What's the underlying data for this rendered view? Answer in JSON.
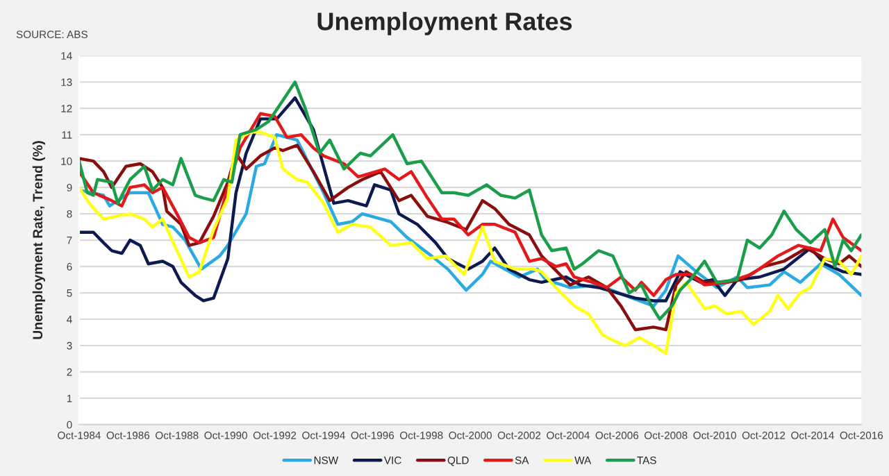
{
  "chart_data": {
    "type": "line",
    "title": "Unemployment Rates",
    "ylabel": "Unemployment Rate, Trend (%)",
    "annotations": [
      "SOURCE: ABS"
    ],
    "xlim": [
      "1984-10",
      "2016-10"
    ],
    "ylim": [
      0,
      14
    ],
    "yticks": [
      0,
      1,
      2,
      3,
      4,
      5,
      6,
      7,
      8,
      9,
      10,
      11,
      12,
      13,
      14
    ],
    "xticks": [
      {
        "value": "1984-10",
        "label": "Oct-1984"
      },
      {
        "value": "1986-10",
        "label": "Oct-1986"
      },
      {
        "value": "1988-10",
        "label": "Oct-1988"
      },
      {
        "value": "1990-10",
        "label": "Oct-1990"
      },
      {
        "value": "1992-10",
        "label": "Oct-1992"
      },
      {
        "value": "1994-10",
        "label": "Oct-1994"
      },
      {
        "value": "1996-10",
        "label": "Oct-1996"
      },
      {
        "value": "1998-10",
        "label": "Oct-1998"
      },
      {
        "value": "2000-10",
        "label": "Oct-2000"
      },
      {
        "value": "2002-10",
        "label": "Oct-2002"
      },
      {
        "value": "2004-10",
        "label": "Oct-2004"
      },
      {
        "value": "2006-10",
        "label": "Oct-2006"
      },
      {
        "value": "2008-10",
        "label": "Oct-2008"
      },
      {
        "value": "2010-10",
        "label": "Oct-2010"
      },
      {
        "value": "2012-10",
        "label": "Oct-2012"
      },
      {
        "value": "2014-10",
        "label": "Oct-2014"
      },
      {
        "value": "2016-10",
        "label": "Oct-2016"
      }
    ],
    "grid": "y",
    "legend": "bottom",
    "marker": "none",
    "line_style": "solid",
    "series": [
      {
        "name": "NSW",
        "color": "#29abe2",
        "x": [
          "1984-10",
          "1985-10",
          "1986-01",
          "1986-11",
          "1987-08",
          "1988-03",
          "1988-08",
          "1989-02",
          "1989-10",
          "1990-07",
          "1990-11",
          "1991-08",
          "1992-01",
          "1992-05",
          "1992-11",
          "1993-09",
          "1994-10",
          "1995-05",
          "1995-12",
          "1996-05",
          "1997-07",
          "1998-03",
          "1999-03",
          "1999-11",
          "2000-08",
          "2001-04",
          "2001-08",
          "2002-10",
          "2003-07",
          "2003-11",
          "2004-11",
          "2006-01",
          "2007-02",
          "2008-04",
          "2008-10",
          "2009-04",
          "2010-01",
          "2010-11",
          "2011-09",
          "2012-02",
          "2013-01",
          "2013-08",
          "2014-04",
          "2015-02",
          "2015-11",
          "2016-10"
        ],
        "values": [
          8.9,
          8.7,
          8.3,
          8.8,
          8.8,
          7.6,
          7.5,
          7.0,
          5.9,
          6.4,
          6.8,
          8.0,
          9.8,
          9.9,
          11.0,
          10.8,
          8.8,
          7.6,
          7.7,
          8.0,
          7.7,
          7.1,
          6.4,
          5.9,
          5.1,
          5.7,
          6.2,
          5.6,
          5.9,
          5.5,
          5.2,
          5.3,
          4.9,
          4.5,
          5.1,
          6.4,
          5.8,
          5.2,
          5.6,
          5.2,
          5.3,
          5.8,
          5.4,
          6.1,
          5.7,
          4.9
        ]
      },
      {
        "name": "VIC",
        "color": "#0d1a4f",
        "x": [
          "1984-10",
          "1985-05",
          "1985-10",
          "1986-02",
          "1986-07",
          "1986-11",
          "1987-04",
          "1987-08",
          "1988-03",
          "1988-08",
          "1988-12",
          "1989-07",
          "1989-11",
          "1990-04",
          "1990-11",
          "1991-03",
          "1991-08",
          "1992-03",
          "1992-11",
          "1993-08",
          "1994-05",
          "1994-10",
          "1995-03",
          "1995-10",
          "1996-07",
          "1996-11",
          "1997-07",
          "1997-11",
          "1998-08",
          "1999-05",
          "1999-11",
          "2000-09",
          "2001-04",
          "2001-10",
          "2002-05",
          "2003-03",
          "2003-09",
          "2004-09",
          "2005-04",
          "2006-01",
          "2007-07",
          "2008-04",
          "2008-10",
          "2009-05",
          "2010-03",
          "2010-09",
          "2011-03",
          "2011-09",
          "2012-08",
          "2013-08",
          "2014-09",
          "2015-04",
          "2016-01",
          "2016-10"
        ],
        "values": [
          7.3,
          7.3,
          6.9,
          6.6,
          6.5,
          7.0,
          6.8,
          6.1,
          6.2,
          6.0,
          5.4,
          4.9,
          4.7,
          4.8,
          6.3,
          8.8,
          10.3,
          11.6,
          11.6,
          12.4,
          11.2,
          9.8,
          8.4,
          8.5,
          8.3,
          9.1,
          8.9,
          8.0,
          7.6,
          6.9,
          6.3,
          5.9,
          6.2,
          6.7,
          5.9,
          5.5,
          5.4,
          5.6,
          5.3,
          5.2,
          4.8,
          4.7,
          4.7,
          5.8,
          5.4,
          5.5,
          4.9,
          5.5,
          5.6,
          5.9,
          6.7,
          6.1,
          5.8,
          5.7
        ]
      },
      {
        "name": "QLD",
        "color": "#8b0e0e",
        "x": [
          "1984-10",
          "1985-05",
          "1985-10",
          "1986-02",
          "1986-09",
          "1987-04",
          "1987-10",
          "1988-03",
          "1988-05",
          "1988-12",
          "1989-04",
          "1989-09",
          "1990-04",
          "1990-11",
          "1991-03",
          "1991-08",
          "1992-03",
          "1992-10",
          "1993-02",
          "1993-09",
          "1994-05",
          "1995-01",
          "1995-10",
          "1996-05",
          "1997-02",
          "1997-11",
          "1998-05",
          "1999-01",
          "1999-10",
          "2000-08",
          "2001-04",
          "2001-10",
          "2002-05",
          "2003-03",
          "2003-09",
          "2004-11",
          "2005-08",
          "2006-05",
          "2006-12",
          "2007-07",
          "2008-04",
          "2008-10",
          "2009-03",
          "2009-08",
          "2010-05",
          "2011-04",
          "2011-11",
          "2012-10",
          "2013-08",
          "2014-07",
          "2015-04",
          "2015-11",
          "2016-04",
          "2016-10"
        ],
        "values": [
          10.1,
          10.0,
          9.6,
          9.0,
          9.8,
          9.9,
          9.6,
          9.0,
          8.1,
          7.6,
          6.8,
          6.9,
          7.9,
          9.2,
          10.3,
          9.7,
          10.2,
          10.5,
          10.4,
          10.6,
          9.6,
          8.5,
          9.0,
          9.3,
          9.6,
          8.5,
          8.7,
          7.9,
          7.7,
          7.4,
          8.5,
          8.2,
          7.6,
          7.2,
          6.4,
          5.3,
          5.6,
          5.2,
          4.5,
          3.6,
          3.7,
          3.6,
          5.3,
          5.8,
          5.4,
          5.4,
          5.5,
          6.0,
          6.2,
          6.7,
          6.3,
          6.1,
          6.4,
          6.0
        ]
      },
      {
        "name": "SA",
        "color": "#e31a1c",
        "x": [
          "1984-10",
          "1985-05",
          "1986-02",
          "1986-07",
          "1986-11",
          "1987-06",
          "1987-10",
          "1988-03",
          "1988-10",
          "1989-04",
          "1989-09",
          "1990-04",
          "1990-11",
          "1991-05",
          "1992-03",
          "1992-10",
          "1993-04",
          "1993-11",
          "1994-05",
          "1994-10",
          "1995-08",
          "1996-03",
          "1997-04",
          "1997-11",
          "1998-05",
          "1999-01",
          "1999-08",
          "2000-02",
          "2000-09",
          "2001-04",
          "2001-10",
          "2002-08",
          "2003-03",
          "2003-09",
          "2004-04",
          "2004-09",
          "2005-01",
          "2005-10",
          "2006-05",
          "2006-12",
          "2007-07",
          "2007-10",
          "2008-04",
          "2008-10",
          "2009-03",
          "2009-10",
          "2010-05",
          "2011-04",
          "2012-04",
          "2013-05",
          "2014-03",
          "2015-02",
          "2015-08",
          "2016-01",
          "2016-10"
        ],
        "values": [
          9.6,
          8.8,
          8.5,
          8.3,
          9.0,
          9.1,
          8.8,
          9.0,
          8.0,
          7.1,
          6.9,
          7.1,
          9.0,
          10.5,
          11.8,
          11.7,
          10.9,
          11.0,
          10.5,
          10.2,
          9.9,
          9.4,
          9.7,
          9.3,
          9.6,
          8.6,
          7.8,
          7.8,
          7.2,
          7.6,
          7.6,
          7.3,
          6.2,
          6.3,
          6.0,
          6.1,
          5.6,
          5.4,
          5.2,
          5.6,
          5.1,
          5.4,
          4.9,
          5.5,
          5.7,
          5.7,
          5.3,
          5.4,
          5.7,
          6.4,
          6.8,
          6.6,
          7.8,
          7.1,
          6.6
        ]
      },
      {
        "name": "WA",
        "color": "#ffff1a",
        "x": [
          "1984-10",
          "1985-03",
          "1985-10",
          "1986-04",
          "1986-11",
          "1987-06",
          "1987-10",
          "1988-03",
          "1988-10",
          "1989-04",
          "1989-09",
          "1990-04",
          "1990-11",
          "1991-03",
          "1991-10",
          "1992-03",
          "1992-10",
          "1993-02",
          "1993-09",
          "1994-02",
          "1994-10",
          "1995-05",
          "1995-12",
          "1996-09",
          "1997-07",
          "1998-05",
          "1999-01",
          "1999-10",
          "2000-07",
          "2001-04",
          "2001-10",
          "2002-08",
          "2003-05",
          "2003-09",
          "2004-04",
          "2005-01",
          "2005-08",
          "2006-03",
          "2006-08",
          "2007-02",
          "2007-09",
          "2008-04",
          "2008-10",
          "2009-03",
          "2009-08",
          "2010-05",
          "2010-10",
          "2011-04",
          "2011-11",
          "2012-05",
          "2013-01",
          "2013-05",
          "2013-10",
          "2014-04",
          "2014-09",
          "2015-04",
          "2015-11",
          "2016-05",
          "2016-10"
        ],
        "values": [
          9.0,
          8.4,
          7.8,
          7.9,
          8.0,
          7.8,
          7.5,
          7.8,
          6.6,
          5.6,
          5.8,
          7.4,
          8.6,
          10.8,
          11.1,
          11.1,
          10.9,
          9.7,
          9.3,
          9.2,
          8.4,
          7.3,
          7.6,
          7.5,
          6.8,
          6.9,
          6.3,
          6.4,
          5.7,
          7.5,
          6.2,
          5.9,
          5.9,
          5.8,
          5.2,
          4.5,
          4.2,
          3.4,
          3.2,
          3.0,
          3.3,
          3.0,
          2.7,
          5.0,
          5.4,
          4.4,
          4.5,
          4.2,
          4.3,
          3.8,
          4.3,
          4.9,
          4.4,
          5.0,
          5.2,
          6.3,
          6.2,
          5.7,
          6.4
        ]
      },
      {
        "name": "TAS",
        "color": "#1a9e4a",
        "x": [
          "1984-10",
          "1985-02",
          "1985-05",
          "1985-07",
          "1986-02",
          "1986-05",
          "1986-11",
          "1987-06",
          "1987-10",
          "1988-03",
          "1988-08",
          "1988-12",
          "1989-07",
          "1989-11",
          "1990-04",
          "1990-09",
          "1991-01",
          "1991-05",
          "1992-01",
          "1992-07",
          "1993-02",
          "1993-08",
          "1994-01",
          "1994-08",
          "1995-01",
          "1995-08",
          "1996-04",
          "1996-09",
          "1997-08",
          "1998-03",
          "1998-10",
          "1999-08",
          "2000-02",
          "2000-09",
          "2001-06",
          "2002-01",
          "2002-08",
          "2003-03",
          "2003-09",
          "2004-02",
          "2004-09",
          "2005-01",
          "2005-05",
          "2006-01",
          "2006-08",
          "2007-04",
          "2007-10",
          "2008-03",
          "2008-07",
          "2009-01",
          "2009-05",
          "2009-10",
          "2010-05",
          "2010-11",
          "2011-09",
          "2012-02",
          "2012-08",
          "2013-02",
          "2013-08",
          "2014-02",
          "2014-09",
          "2015-04",
          "2015-09",
          "2016-01",
          "2016-05",
          "2016-10"
        ],
        "values": [
          10.0,
          8.8,
          8.7,
          9.3,
          9.2,
          8.4,
          9.3,
          9.8,
          8.9,
          9.3,
          9.1,
          10.1,
          8.7,
          8.6,
          8.5,
          9.3,
          9.2,
          11.0,
          11.2,
          11.5,
          12.3,
          13.0,
          12.0,
          10.3,
          10.8,
          9.7,
          10.3,
          10.2,
          11.0,
          9.9,
          10.0,
          8.8,
          8.8,
          8.7,
          9.1,
          8.7,
          8.6,
          8.9,
          7.2,
          6.6,
          6.7,
          5.9,
          6.1,
          6.6,
          6.4,
          5.0,
          5.3,
          4.5,
          4.0,
          4.5,
          5.1,
          5.5,
          6.2,
          5.4,
          5.5,
          7.0,
          6.7,
          7.2,
          8.1,
          7.4,
          6.9,
          7.4,
          6.0,
          7.0,
          6.6,
          7.2
        ]
      }
    ]
  }
}
